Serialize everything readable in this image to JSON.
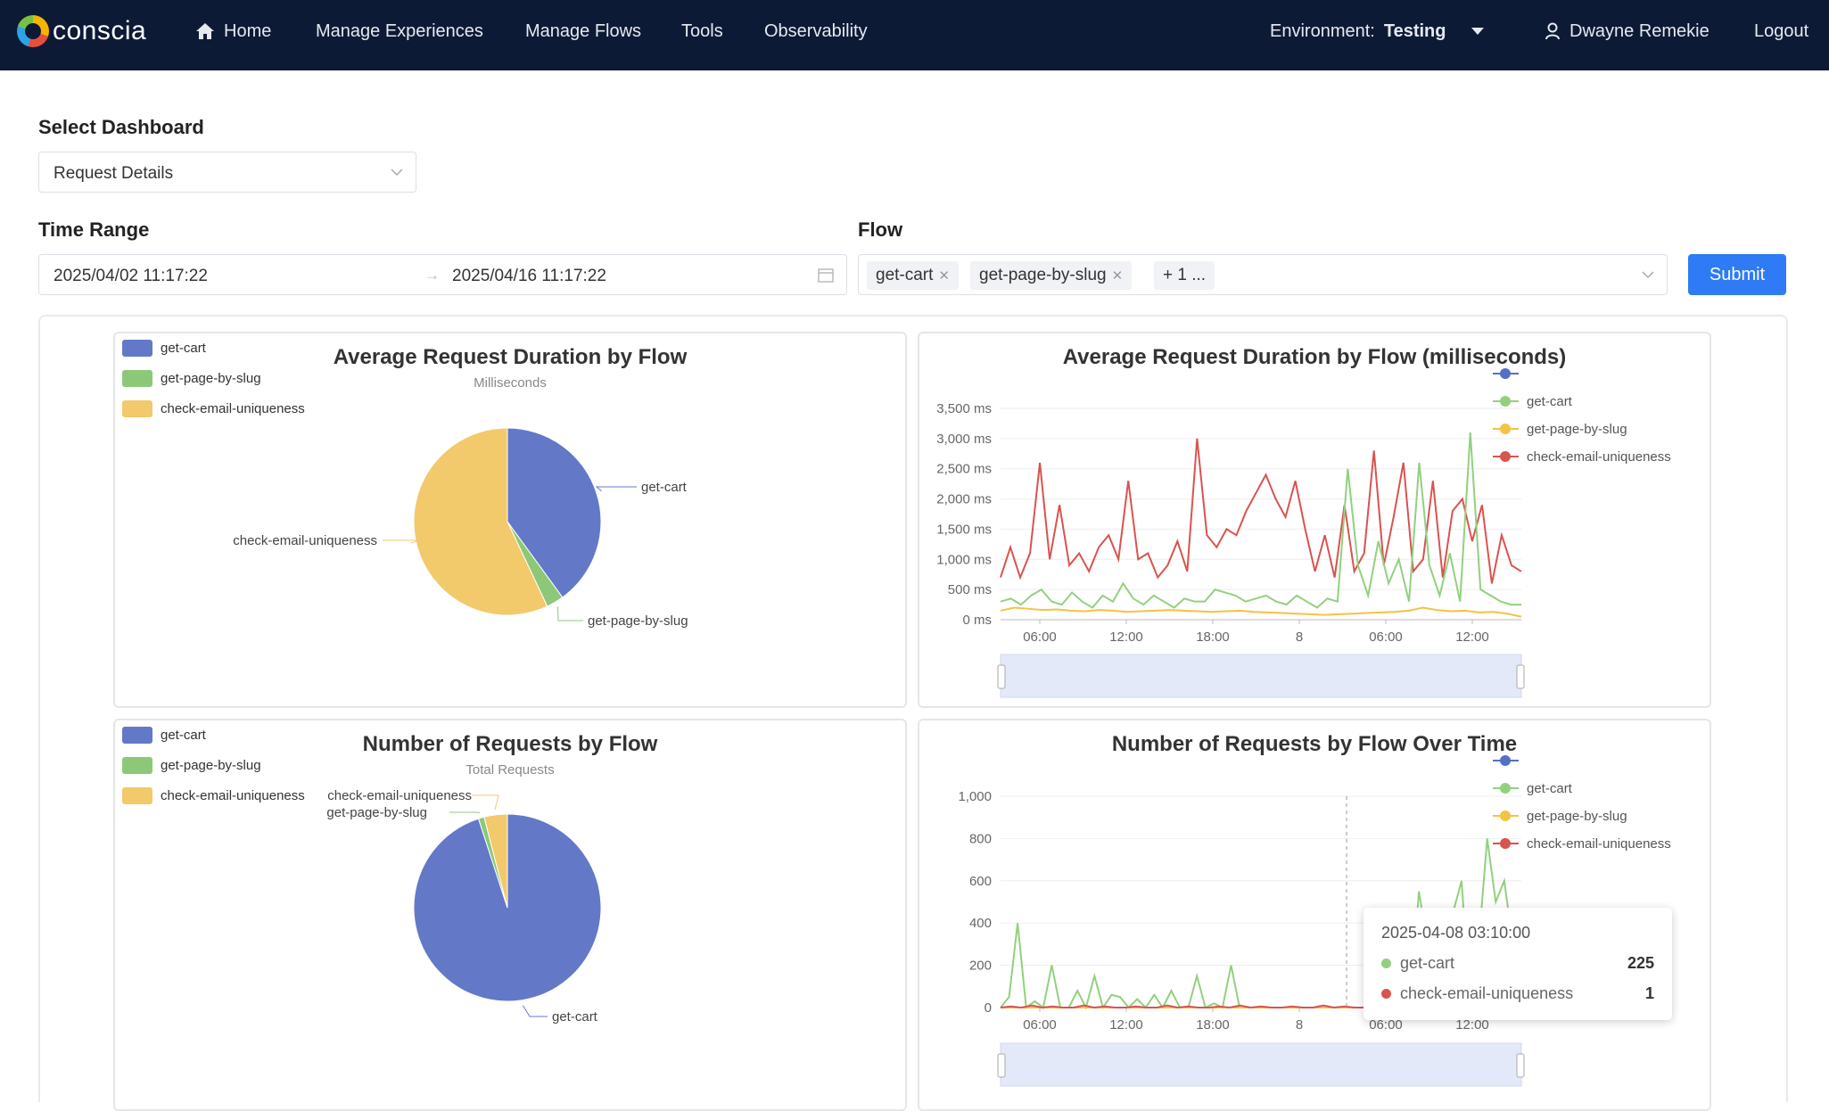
{
  "header": {
    "brand": "conscia",
    "nav": [
      "Home",
      "Manage Experiences",
      "Manage Flows",
      "Tools",
      "Observability"
    ],
    "environment_label": "Environment:",
    "environment_value": "Testing",
    "user": "Dwayne Remekie",
    "logout": "Logout"
  },
  "filters": {
    "dashboard_label": "Select Dashboard",
    "dashboard_value": "Request Details",
    "time_range_label": "Time Range",
    "time_start": "2025/04/02 11:17:22",
    "time_separator": "→",
    "time_end": "2025/04/16 11:17:22",
    "flow_label": "Flow",
    "flow_tags": [
      "get-cart",
      "get-page-by-slug"
    ],
    "flow_more": "+ 1 ...",
    "submit": "Submit"
  },
  "colors": {
    "get_cart": "#6478c8",
    "get_page_by_slug": "#8cc878",
    "check_email": "#f2c96b",
    "line_get_cart": "#92d07f",
    "line_get_page": "#f5c342",
    "line_check_email": "#d9534f",
    "primary": "#2f7bf5"
  },
  "legend": [
    "get-cart",
    "get-page-by-slug",
    "check-email-uniqueness"
  ],
  "line_legend": [
    "",
    "get-cart",
    "get-page-by-slug",
    "check-email-uniqueness"
  ],
  "pie1": {
    "title": "Average Request Duration by Flow",
    "subtitle": "Milliseconds"
  },
  "pie2": {
    "title": "Number of Requests by Flow",
    "subtitle": "Total Requests"
  },
  "line1": {
    "title": "Average Request Duration by Flow (milliseconds)"
  },
  "line2": {
    "title": "Number of Requests by Flow Over Time",
    "tooltip": {
      "time": "2025-04-08 03:10:00",
      "rows": [
        {
          "name": "get-cart",
          "value": "225"
        },
        {
          "name": "check-email-uniqueness",
          "value": "1"
        }
      ]
    }
  },
  "chart_data": [
    {
      "type": "pie",
      "title": "Average Request Duration by Flow",
      "subtitle": "Milliseconds",
      "labels": [
        "get-cart",
        "get-page-by-slug",
        "check-email-uniqueness"
      ],
      "values": [
        40,
        3,
        57
      ],
      "legend": "top-left"
    },
    {
      "type": "line",
      "title": "Average Request Duration by Flow (milliseconds)",
      "x_ticks": [
        "06:00",
        "12:00",
        "18:00",
        "8",
        "06:00",
        "12:00"
      ],
      "y_ticks": [
        "3,500 ms",
        "3,000 ms",
        "2,500 ms",
        "2,000 ms",
        "1,500 ms",
        "1,000 ms",
        "500 ms",
        "0 ms"
      ],
      "ylim": [
        0,
        3500
      ],
      "grid": true,
      "legend": "top-right",
      "series": [
        {
          "name": "check-email-uniqueness",
          "values": [
            700,
            1200,
            700,
            1100,
            2600,
            1000,
            1900,
            900,
            1100,
            800,
            1200,
            1400,
            1000,
            2300,
            1000,
            1100,
            700,
            900,
            1300,
            800,
            3000,
            1400,
            1200,
            1500,
            1400,
            1800,
            2100,
            2400,
            2000,
            1700,
            2300,
            1500,
            800,
            1400,
            700,
            1900,
            800,
            1100,
            2800,
            900,
            1700,
            2600,
            800,
            1000,
            2300,
            700,
            1800,
            2000,
            1300,
            1900,
            600,
            1400,
            900,
            800
          ]
        },
        {
          "name": "get-cart",
          "values": [
            300,
            350,
            250,
            400,
            500,
            300,
            250,
            450,
            300,
            200,
            400,
            300,
            600,
            350,
            250,
            400,
            300,
            200,
            350,
            300,
            300,
            500,
            450,
            400,
            300,
            350,
            400,
            300,
            250,
            400,
            300,
            200,
            350,
            300,
            2500,
            900,
            400,
            1300,
            600,
            1000,
            300,
            2600,
            900,
            400,
            1100,
            300,
            3100,
            500,
            400,
            300,
            250,
            250
          ]
        },
        {
          "name": "get-page-by-slug",
          "values": [
            150,
            200,
            180,
            160,
            170,
            150,
            140,
            160,
            150,
            130,
            140,
            150,
            160,
            150,
            140,
            130,
            140,
            150,
            130,
            120,
            110,
            100,
            90,
            80,
            90,
            100,
            110,
            120,
            130,
            150,
            200,
            160,
            140,
            150,
            120,
            130,
            100,
            50
          ]
        }
      ]
    },
    {
      "type": "pie",
      "title": "Number of Requests by Flow",
      "subtitle": "Total Requests",
      "labels": [
        "get-cart",
        "get-page-by-slug",
        "check-email-uniqueness"
      ],
      "values": [
        95,
        1,
        4
      ],
      "legend": "top-left"
    },
    {
      "type": "line",
      "title": "Number of Requests by Flow Over Time",
      "x_ticks": [
        "06:00",
        "12:00",
        "18:00",
        "8",
        "06:00",
        "12:00"
      ],
      "y_ticks": [
        "1,000",
        "800",
        "600",
        "400",
        "200",
        "0"
      ],
      "ylim": [
        0,
        1000
      ],
      "grid": true,
      "legend": "top-right",
      "series": [
        {
          "name": "get-cart",
          "values": [
            0,
            50,
            400,
            0,
            30,
            0,
            200,
            0,
            0,
            80,
            0,
            150,
            0,
            60,
            50,
            0,
            40,
            0,
            60,
            0,
            80,
            0,
            0,
            150,
            0,
            20,
            0,
            200,
            0,
            0,
            0,
            0,
            0,
            0,
            0,
            0,
            0,
            0,
            0,
            0,
            0,
            0,
            0,
            0,
            0,
            0,
            0,
            0,
            0,
            550,
            300,
            400,
            250,
            450,
            600,
            0,
            300,
            800,
            500,
            600,
            300,
            0
          ]
        },
        {
          "name": "get-page-by-slug",
          "values": [
            0,
            0,
            0,
            0,
            0,
            0,
            0,
            0,
            0,
            0,
            0,
            0,
            0,
            0,
            0,
            0,
            0,
            0,
            0,
            0,
            0,
            0,
            0,
            0,
            0,
            0,
            0,
            0,
            0,
            0,
            0,
            0,
            0,
            0,
            0,
            0,
            0,
            0,
            0,
            0,
            0,
            0,
            0,
            0,
            0,
            0
          ]
        },
        {
          "name": "check-email-uniqueness",
          "values": [
            0,
            5,
            0,
            10,
            0,
            5,
            0,
            0,
            10,
            0,
            5,
            0,
            0,
            5,
            0,
            0,
            10,
            0,
            5,
            0,
            0,
            5,
            0,
            10,
            0,
            5,
            0,
            0,
            5,
            0,
            0,
            10,
            0,
            5,
            0,
            0,
            5,
            0,
            10,
            0,
            5,
            0,
            0,
            5,
            0,
            0,
            1,
            5,
            0,
            10,
            0
          ]
        }
      ]
    }
  ]
}
